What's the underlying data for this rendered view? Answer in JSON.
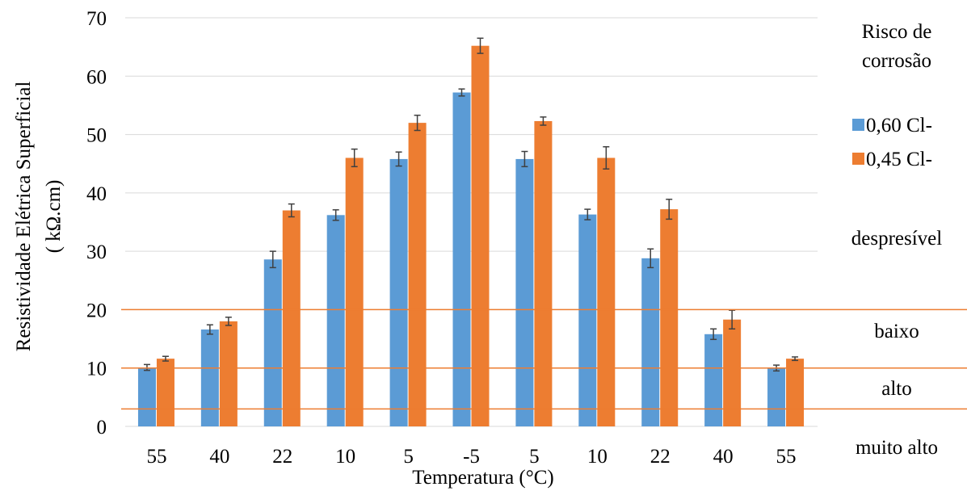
{
  "chart_data": {
    "type": "bar",
    "title": "",
    "xlabel": "Temperatura (°C)",
    "ylabel": "Resistividade Elétrica Superficial",
    "ylabel_unit": "( kΩ.cm)",
    "ylim": [
      0,
      70
    ],
    "yticks": [
      0,
      10,
      20,
      30,
      40,
      50,
      60,
      70
    ],
    "grid": true,
    "categories": [
      "55",
      "40",
      "22",
      "10",
      "5",
      "-5",
      "5",
      "10",
      "22",
      "40",
      "55"
    ],
    "legend_title": "Risco de corrosão",
    "legend_title_lines": [
      "Risco de",
      "corrosão"
    ],
    "legend_position": "right",
    "series": [
      {
        "name": "0,60 Cl-",
        "color": "#5b9bd5",
        "values": [
          10.1,
          16.6,
          28.6,
          36.2,
          45.8,
          57.2,
          45.8,
          36.3,
          28.8,
          15.8,
          10.0
        ],
        "errors": [
          0.5,
          0.8,
          1.4,
          0.9,
          1.2,
          0.6,
          1.3,
          0.9,
          1.6,
          0.9,
          0.5
        ]
      },
      {
        "name": "0,45 Cl-",
        "color": "#ed7d31",
        "values": [
          11.6,
          18.0,
          37.0,
          46.0,
          52.0,
          65.2,
          52.3,
          46.0,
          37.2,
          18.3,
          11.6
        ],
        "errors": [
          0.4,
          0.7,
          1.1,
          1.5,
          1.3,
          1.3,
          0.7,
          1.9,
          1.7,
          1.6,
          0.3
        ]
      }
    ],
    "risk_zones": {
      "line_color": "#ed7d31",
      "thresholds": [
        20,
        10,
        3
      ],
      "labels": [
        "despresível",
        "baixo",
        "alto",
        "muito alto"
      ]
    }
  }
}
